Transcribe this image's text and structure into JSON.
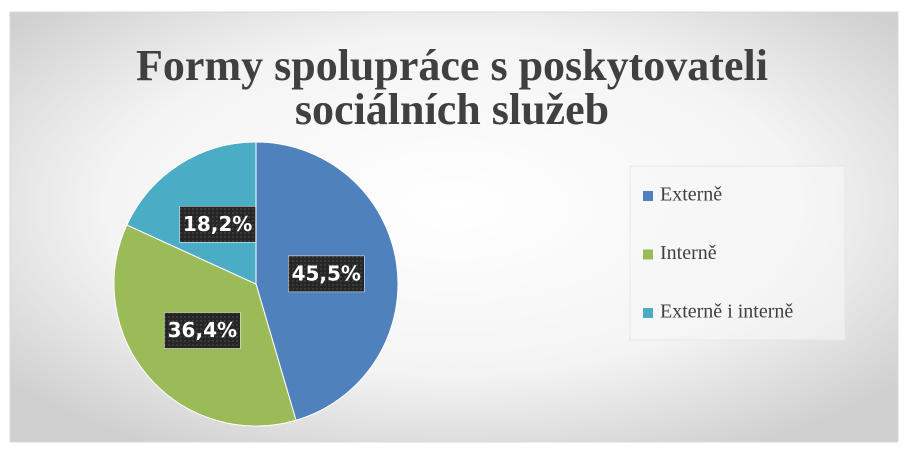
{
  "chart_data": {
    "type": "pie",
    "title": "Formy spolupráce s poskytovateli sociálních služeb",
    "categories": [
      "Externě",
      "Interně",
      "Externě i interně"
    ],
    "values": [
      45.5,
      36.4,
      18.2
    ],
    "value_labels": [
      "45,5%",
      "36,4%",
      "18,2%"
    ],
    "colors": [
      "#4f81bd",
      "#9bbb59",
      "#4bacc6"
    ],
    "legend": "right"
  }
}
